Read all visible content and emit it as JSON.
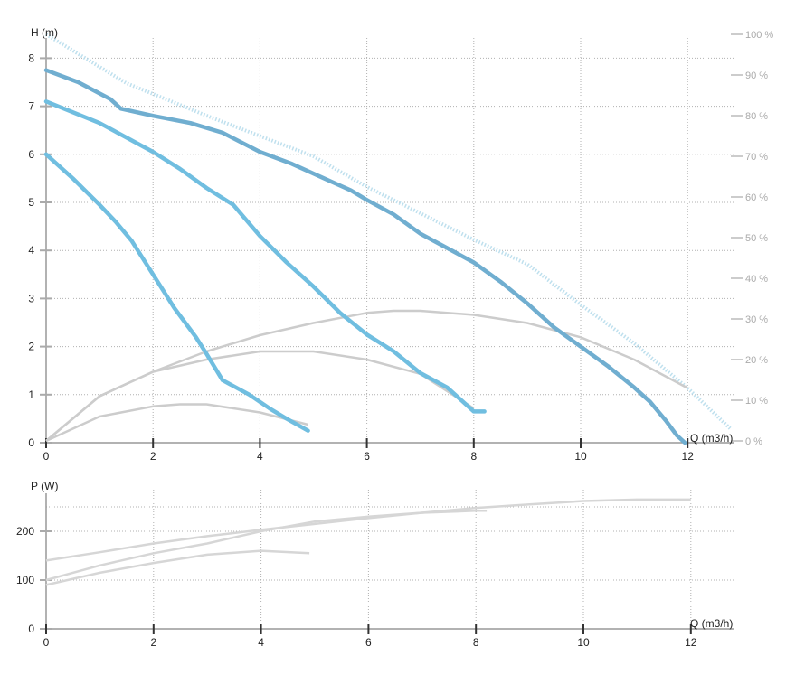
{
  "chart_data": [
    {
      "type": "line",
      "xlabel": "Q (m3/h)",
      "ylabel": "H (m)",
      "xlim": [
        0,
        12.6
      ],
      "ylim": [
        0,
        8.4
      ],
      "x_ticks": [
        "0",
        "2",
        "4",
        "6",
        "8",
        "10",
        "12"
      ],
      "y_ticks": [
        "0",
        "1",
        "2",
        "3",
        "4",
        "5",
        "6",
        "7",
        "8"
      ],
      "y2_ticks": [
        "0 %",
        "10 %",
        "20 %",
        "30 %",
        "40 %",
        "50 %",
        "60 %",
        "70 %",
        "80 %",
        "90 %",
        "100 %"
      ],
      "y2lim": [
        0,
        100
      ],
      "grid": true,
      "series": [
        {
          "color": "#70aed0",
          "points": [
            [
              0,
              7.75
            ],
            [
              0.6,
              7.5
            ],
            [
              1.2,
              7.15
            ],
            [
              1.4,
              6.95
            ],
            [
              2,
              6.8
            ],
            [
              2.7,
              6.65
            ],
            [
              3.3,
              6.45
            ],
            [
              4,
              6.05
            ],
            [
              4.6,
              5.8
            ],
            [
              5.2,
              5.5
            ],
            [
              5.7,
              5.25
            ],
            [
              6,
              5.05
            ],
            [
              6.5,
              4.75
            ],
            [
              7,
              4.35
            ],
            [
              7.5,
              4.05
            ],
            [
              8,
              3.75
            ],
            [
              8.5,
              3.35
            ],
            [
              9,
              2.9
            ],
            [
              9.5,
              2.4
            ],
            [
              10,
              2.0
            ],
            [
              10.5,
              1.6
            ],
            [
              11,
              1.15
            ],
            [
              11.3,
              0.85
            ],
            [
              11.6,
              0.45
            ],
            [
              11.8,
              0.15
            ],
            [
              11.95,
              0.0
            ]
          ]
        },
        {
          "color": "#70bee0",
          "points": [
            [
              0,
              7.1
            ],
            [
              1,
              6.65
            ],
            [
              2,
              6.05
            ],
            [
              2.5,
              5.7
            ],
            [
              3,
              5.3
            ],
            [
              3.5,
              4.95
            ],
            [
              4,
              4.3
            ],
            [
              4.5,
              3.75
            ],
            [
              5,
              3.25
            ],
            [
              5.5,
              2.7
            ],
            [
              6,
              2.25
            ],
            [
              6.5,
              1.9
            ],
            [
              7,
              1.45
            ],
            [
              7.5,
              1.15
            ],
            [
              8,
              0.65
            ],
            [
              8.2,
              0.65
            ]
          ]
        },
        {
          "color": "#70bee0",
          "points": [
            [
              0,
              6.0
            ],
            [
              0.5,
              5.5
            ],
            [
              1,
              4.95
            ],
            [
              1.3,
              4.6
            ],
            [
              1.6,
              4.2
            ],
            [
              2,
              3.5
            ],
            [
              2.4,
              2.8
            ],
            [
              2.8,
              2.2
            ],
            [
              3,
              1.85
            ],
            [
              3.3,
              1.3
            ],
            [
              3.8,
              1.0
            ],
            [
              4.2,
              0.7
            ],
            [
              4.5,
              0.5
            ],
            [
              4.9,
              0.25
            ]
          ]
        }
      ],
      "efficiency_series": [
        {
          "color": "#cccccc",
          "points": [
            [
              0,
              0
            ],
            [
              1,
              11
            ],
            [
              2,
              17
            ],
            [
              3,
              22
            ],
            [
              4,
              26
            ],
            [
              5,
              29
            ],
            [
              6,
              31.5
            ],
            [
              6.5,
              32
            ],
            [
              7,
              32
            ],
            [
              8,
              31
            ],
            [
              9,
              29
            ],
            [
              10,
              25.5
            ],
            [
              11,
              20
            ],
            [
              12,
              13
            ]
          ]
        },
        {
          "color": "#cccccc",
          "points": [
            [
              0,
              0
            ],
            [
              1,
              11
            ],
            [
              2,
              17
            ],
            [
              3,
              20
            ],
            [
              4,
              22
            ],
            [
              5,
              22
            ],
            [
              6,
              20
            ],
            [
              7,
              16.5
            ],
            [
              8,
              8
            ]
          ]
        },
        {
          "color": "#cccccc",
          "points": [
            [
              0,
              0
            ],
            [
              1,
              6
            ],
            [
              2,
              8.5
            ],
            [
              2.5,
              9
            ],
            [
              3,
              9
            ],
            [
              4,
              7
            ],
            [
              4.9,
              4
            ]
          ]
        }
      ],
      "total_efficiency_series": [
        {
          "color": "#bfe0ee",
          "points": [
            [
              0,
              100
            ],
            [
              1.5,
              88
            ],
            [
              3,
              80
            ],
            [
              4,
              75
            ],
            [
              5,
              70
            ],
            [
              6,
              62.5
            ],
            [
              7,
              56
            ],
            [
              8,
              49.5
            ],
            [
              9,
              43.5
            ],
            [
              10,
              33.5
            ],
            [
              11,
              24
            ],
            [
              12,
              13
            ],
            [
              12.8,
              3
            ]
          ]
        }
      ]
    },
    {
      "type": "line",
      "xlabel": "Q (m3/h)",
      "ylabel": "P (W)",
      "xlim": [
        0,
        12.6
      ],
      "ylim": [
        0,
        280
      ],
      "x_ticks": [
        "0",
        "2",
        "4",
        "6",
        "8",
        "10",
        "12"
      ],
      "y_ticks": [
        "0",
        "100",
        "200"
      ],
      "grid": true,
      "series": [
        {
          "color": "#d6d6d6",
          "points": [
            [
              0,
              140
            ],
            [
              1,
              157
            ],
            [
              2,
              175
            ],
            [
              3,
              190
            ],
            [
              4,
              203
            ],
            [
              5,
              215
            ],
            [
              6,
              227
            ],
            [
              7,
              238
            ],
            [
              8,
              248
            ],
            [
              9,
              255
            ],
            [
              10,
              262
            ],
            [
              11,
              265
            ],
            [
              12,
              265
            ]
          ]
        },
        {
          "color": "#d6d6d6",
          "points": [
            [
              0,
              100
            ],
            [
              1,
              130
            ],
            [
              2,
              155
            ],
            [
              3,
              175
            ],
            [
              4,
              200
            ],
            [
              5,
              220
            ],
            [
              6,
              230
            ],
            [
              7,
              238
            ],
            [
              8,
              242
            ],
            [
              8.2,
              242
            ]
          ]
        },
        {
          "color": "#d6d6d6",
          "points": [
            [
              0,
              90
            ],
            [
              1,
              115
            ],
            [
              2,
              135
            ],
            [
              3,
              152
            ],
            [
              4,
              160
            ],
            [
              4.9,
              155
            ]
          ]
        }
      ]
    }
  ]
}
